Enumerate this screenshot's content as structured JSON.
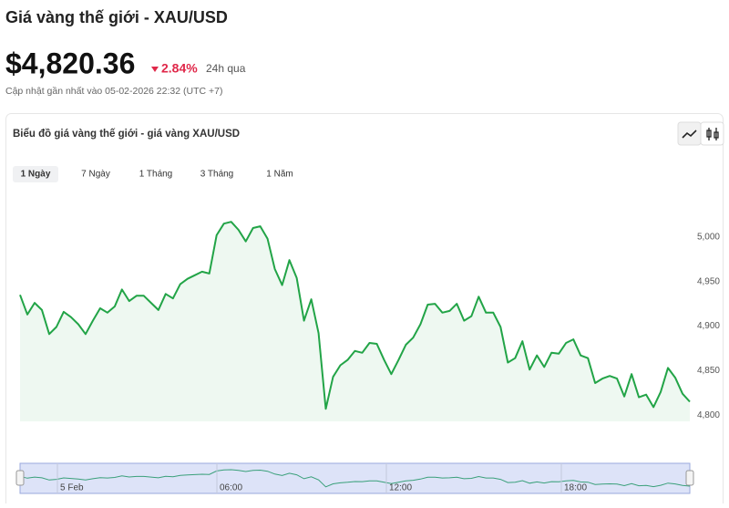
{
  "header": {
    "title": "Giá vàng thế giới - XAU/USD",
    "price": "$4,820.36",
    "change": "2.84%",
    "change_period": "24h qua",
    "updated": "Cập nhật gần nhất vào 05-02-2026 22:32 (UTC +7)"
  },
  "chart_data": {
    "type": "area",
    "title": "Biểu đồ giá vàng thế giới - giá vàng XAU/USD",
    "ranges": [
      "1 Ngày",
      "7 Ngày",
      "1 Tháng",
      "3 Tháng",
      "1 Năm"
    ],
    "active_range": 0,
    "values": [
      4935,
      4913,
      4926,
      4918,
      4891,
      4899,
      4916,
      4910,
      4902,
      4891,
      4906,
      4920,
      4915,
      4922,
      4941,
      4928,
      4934,
      4934,
      4926,
      4918,
      4936,
      4931,
      4947,
      4953,
      4957,
      4961,
      4959,
      5002,
      5015,
      5017,
      5008,
      4995,
      5010,
      5012,
      4998,
      4964,
      4946,
      4974,
      4954,
      4906,
      4930,
      4892,
      4807,
      4843,
      4856,
      4862,
      4872,
      4870,
      4881,
      4880,
      4862,
      4846,
      4862,
      4879,
      4887,
      4902,
      4924,
      4925,
      4915,
      4917,
      4925,
      4906,
      4911,
      4933,
      4915,
      4915,
      4899,
      4859,
      4864,
      4883,
      4851,
      4867,
      4854,
      4870,
      4869,
      4881,
      4885,
      4867,
      4864,
      4836,
      4841,
      4844,
      4841,
      4821,
      4846,
      4820,
      4823,
      4809,
      4826,
      4853,
      4842,
      4824,
      4815
    ],
    "color": "#22a447",
    "fill": "#eef8f1",
    "ylim": [
      4793,
      5051
    ],
    "yticks": [
      {
        "value": 4800,
        "label": "4,800"
      },
      {
        "value": 4850,
        "label": "4,850"
      },
      {
        "value": 4900,
        "label": "4,900"
      },
      {
        "value": 4950,
        "label": "4,950"
      },
      {
        "value": 5000,
        "label": "5,000"
      }
    ],
    "grid": false,
    "navigator_labels": [
      "5 Feb",
      "06:00",
      "12:00",
      "18:00"
    ]
  }
}
